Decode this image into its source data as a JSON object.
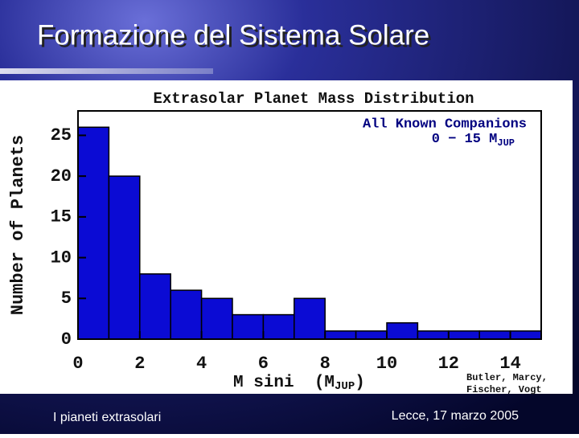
{
  "slide": {
    "title": "Formazione del Sistema Solare",
    "footer_left": "I pianeti extrasolari",
    "footer_right": "Lecce, 17 marzo 2005"
  },
  "chart_data": {
    "type": "histogram",
    "title": "Extrasolar Planet Mass Distribution",
    "annotation": [
      "All Known Companions",
      {
        "main": "0 − 15 M",
        "sub": "JUP"
      }
    ],
    "credit": [
      "Butler, Marcy,",
      "Fischer, Vogt"
    ],
    "y_label": "Number of Planets",
    "x_label": {
      "main": "M sini  (M",
      "sub": "JUP",
      "end": ")"
    },
    "bins": [
      0,
      1,
      2,
      3,
      4,
      5,
      6,
      7,
      8,
      9,
      10,
      11,
      12,
      13,
      14,
      15
    ],
    "values": [
      26,
      20,
      8,
      6,
      5,
      3,
      3,
      5,
      1,
      1,
      2,
      1,
      1,
      1,
      1
    ],
    "color": "#0b0bd4",
    "xlim": [
      0,
      15
    ],
    "ylim": [
      0,
      28
    ],
    "xticks": [
      0,
      2,
      4,
      6,
      8,
      10,
      12,
      14
    ],
    "yticks": [
      0,
      5,
      10,
      15,
      20,
      25
    ]
  }
}
